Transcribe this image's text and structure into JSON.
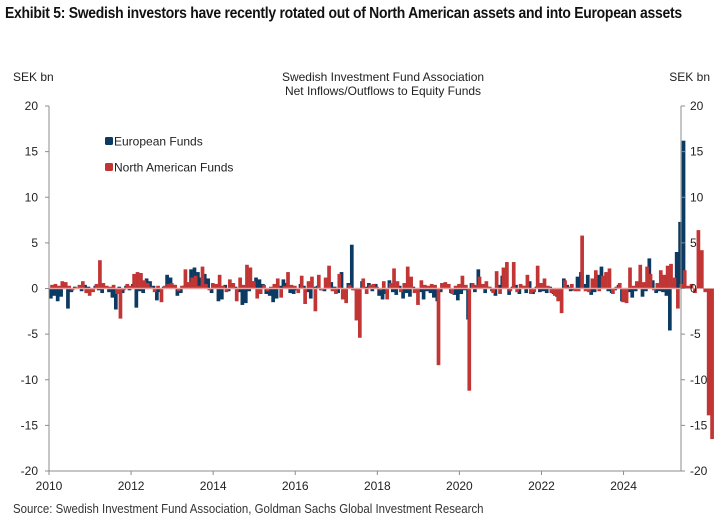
{
  "exhibit": {
    "title": "Exhibit 5: Swedish investors have recently rotated out of North American assets and into European assets",
    "source": "Source: Swedish Investment Fund Association, Goldman Sachs Global Investment Research"
  },
  "chart_data": {
    "type": "bar",
    "title_lines": [
      "Swedish Investment  Fund Association",
      "Net Inflows/Outflows  to Equity Funds"
    ],
    "ylabel_left": "SEK bn",
    "ylabel_right": "SEK bn",
    "ylim": [
      -20,
      20
    ],
    "yticks": [
      20,
      15,
      10,
      5,
      0,
      -5,
      -10,
      -15,
      -20
    ],
    "xlim": [
      2010,
      2025.4
    ],
    "xticks": [
      2010,
      2012,
      2014,
      2016,
      2018,
      2020,
      2022,
      2024
    ],
    "grid": false,
    "legend_position": "top-left",
    "frequency": "monthly",
    "start": "2010-01",
    "series": [
      {
        "name": "European Funds",
        "color": "#0b3a62",
        "values": [
          -1.1,
          -0.8,
          -1.4,
          -0.9,
          0.3,
          -2.2,
          -0.4,
          0.2,
          0.1,
          -0.3,
          0.4,
          0.2,
          -0.1,
          0.3,
          -0.2,
          -0.5,
          0.2,
          -0.4,
          -1.0,
          -2.3,
          0.2,
          -0.5,
          0.3,
          -0.2,
          0.5,
          -2.1,
          -0.3,
          -0.5,
          1.1,
          0.8,
          0.3,
          -1.3,
          -0.4,
          0.2,
          1.5,
          1.2,
          0.4,
          -0.8,
          -0.5,
          0.3,
          0.6,
          2.1,
          2.3,
          1.8,
          1.2,
          1.6,
          1.1,
          -0.5,
          0.2,
          -1.4,
          -1.2,
          0.4,
          -0.3,
          0.6,
          0.2,
          -0.4,
          -1.8,
          -1.6,
          -0.3,
          0.8,
          1.2,
          1.0,
          0.5,
          -0.6,
          -0.8,
          -1.5,
          -1.1,
          0.3,
          1.0,
          0.6,
          -0.5,
          -0.6,
          -0.2,
          0.5,
          0.3,
          -0.4,
          -1.1,
          0.2,
          0.3,
          -0.2,
          -0.3,
          0.4,
          0.7,
          0.2,
          -0.5,
          1.8,
          -0.3,
          0.6,
          4.8,
          -0.2,
          -0.4,
          0.8,
          0.2,
          0.6,
          -0.3,
          0.5,
          -0.8,
          -1.2,
          -0.6,
          0.9,
          -0.4,
          -0.7,
          0.3,
          -1.1,
          -0.5,
          -0.9,
          0.2,
          -0.3,
          -0.4,
          -1.2,
          -0.3,
          -0.5,
          -1.0,
          -1.4,
          -0.4,
          0.2,
          0.3,
          -0.5,
          -0.7,
          -1.3,
          -0.6,
          -0.2,
          -3.4,
          0.6,
          -0.4,
          2.1,
          0.3,
          -0.5,
          0.2,
          -0.3,
          -0.8,
          0.4,
          1.4,
          0.6,
          -0.7,
          0.2,
          0.4,
          -0.6,
          0.3,
          -0.5,
          0.8,
          -0.6,
          0.2,
          -0.4,
          -0.3,
          -0.5,
          0.2,
          -0.6,
          -0.9,
          -0.4,
          1.1,
          0.4,
          -0.3,
          -0.2,
          1.3,
          1.8,
          0.5,
          1.5,
          -0.7,
          -0.4,
          1.5,
          2.4,
          0.2,
          -0.3,
          -0.5,
          -0.2,
          0.4,
          -1.4,
          -0.6,
          -0.4,
          -1.0,
          -0.3,
          0.1,
          -0.9,
          -0.3,
          3.3,
          0.9,
          -0.5,
          -0.3,
          -0.4,
          -0.8,
          -4.6,
          0.6,
          4.0,
          7.3,
          16.2
        ]
      },
      {
        "name": "North American Funds",
        "color": "#c23535",
        "values": [
          0.4,
          0.5,
          0.3,
          0.8,
          0.7,
          0.3,
          -0.2,
          0.1,
          0.4,
          0.8,
          -0.5,
          -0.8,
          -0.4,
          0.5,
          3.1,
          0.6,
          0.3,
          0.2,
          0.4,
          -0.6,
          -3.3,
          -0.2,
          0.5,
          0.3,
          1.6,
          1.8,
          1.7,
          0.9,
          0.6,
          0.2,
          -0.4,
          0.3,
          -1.5,
          0.3,
          0.5,
          0.6,
          0.4,
          -0.3,
          0.3,
          2.1,
          0.7,
          1.2,
          1.4,
          0.3,
          2.4,
          0.5,
          -0.2,
          0.6,
          0.5,
          1.5,
          0.3,
          -0.4,
          1.0,
          0.6,
          -1.4,
          1.2,
          0.4,
          2.6,
          2.3,
          0.8,
          -1.1,
          -0.6,
          0.4,
          -0.3,
          0.2,
          0.5,
          1.1,
          -1.0,
          0.3,
          1.8,
          0.4,
          0.3,
          -0.5,
          1.4,
          -1.7,
          0.8,
          1.3,
          -2.5,
          1.5,
          -0.2,
          1.2,
          2.5,
          -0.3,
          -0.6,
          1.6,
          -1.2,
          -1.6,
          0.4,
          -0.2,
          -3.5,
          -5.4,
          1.1,
          -0.6,
          0.4,
          0.5,
          0.2,
          -0.2,
          0.8,
          -1.2,
          0.6,
          2.2,
          0.8,
          -0.4,
          0.6,
          2.4,
          1.3,
          -0.5,
          -1.8,
          0.9,
          0.4,
          0.3,
          0.5,
          0.4,
          -8.4,
          0.6,
          0.7,
          0.5,
          -0.6,
          0.3,
          0.5,
          1.4,
          0.4,
          -11.2,
          0.6,
          0.4,
          1.3,
          0.5,
          0.8,
          0.2,
          -0.5,
          1.9,
          -0.6,
          2.3,
          2.9,
          -0.3,
          2.9,
          -0.4,
          0.5,
          0.3,
          1.5,
          -0.6,
          -0.4,
          2.5,
          0.6,
          1.1,
          0.3,
          -0.5,
          -0.8,
          -1.4,
          -2.7,
          0.9,
          0.2,
          0.5,
          -0.3,
          -0.3,
          5.8,
          -0.3,
          -0.4,
          1.1,
          2.0,
          -0.3,
          1.4,
          1.8,
          2.2,
          -0.6,
          0.2,
          0.6,
          -1.5,
          -1.6,
          2.3,
          0.3,
          0.8,
          2.6,
          0.7,
          2.4,
          1.6,
          -0.2,
          0.6,
          2.0,
          1.5,
          2.5,
          2.7,
          1.2,
          -2.2,
          0.5,
          2.0,
          0.3,
          0.5,
          -0.5,
          6.4,
          4.2,
          -0.4,
          -13.9,
          -16.5
        ]
      }
    ]
  }
}
